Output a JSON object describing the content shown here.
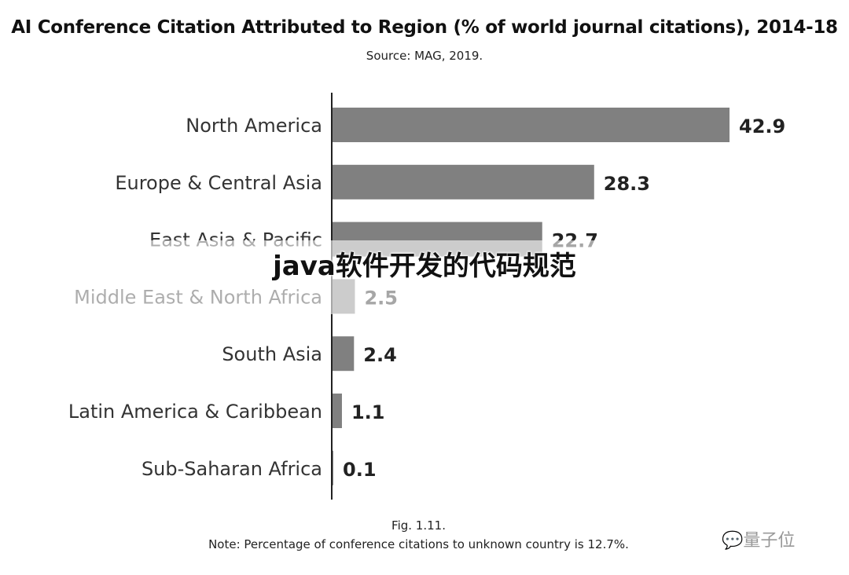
{
  "chart_data": {
    "type": "bar",
    "orientation": "horizontal",
    "title": "AI Conference Citation Attributed to Region (% of world journal citations), 2014-18",
    "subtitle": "Source: MAG, 2019.",
    "categories": [
      "North America",
      "Europe & Central Asia",
      "East Asia & Pacific",
      "Middle East & North Africa",
      "South Asia",
      "Latin America & Caribbean",
      "Sub-Saharan Africa"
    ],
    "values": [
      42.9,
      28.3,
      22.7,
      2.5,
      2.4,
      1.1,
      0.1
    ],
    "value_labels": [
      "42.9",
      "28.3",
      "22.7",
      "2.5",
      "2.4",
      "1.1",
      "0.1"
    ],
    "xlim": [
      0,
      45
    ],
    "bar_color": "#808080",
    "grid": false
  },
  "caption": {
    "fig": "Fig. 1.11.",
    "note": "Note: Percentage of conference citations to unknown country is 12.7%."
  },
  "overlay_title": "java软件开发的代码规范",
  "watermark": "量子位"
}
